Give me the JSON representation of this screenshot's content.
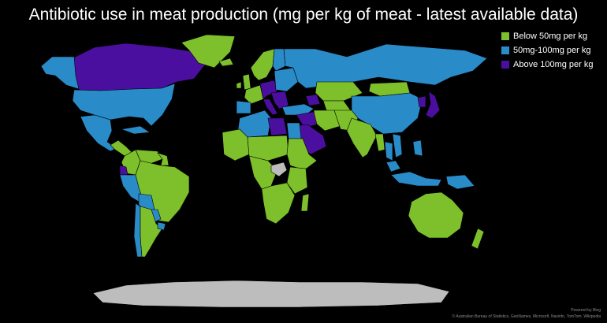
{
  "title": "Antibiotic use in meat production (mg per kg of meat - latest available data)",
  "legend": {
    "position": "top-right",
    "entries": [
      {
        "label": "Below 50mg per kg",
        "color": "#7dc02b"
      },
      {
        "label": "50mg-100mg per kg",
        "color": "#2a8bc9"
      },
      {
        "label": "Above 100mg per kg",
        "color": "#4b0fa0"
      }
    ]
  },
  "no_data_color": "#bdbdbd",
  "background_color": "#000000",
  "attribution": {
    "line1": "Powered by Bing",
    "line2": "© Australian Bureau of Statistics, GeoNames, Microsoft, Navinfo, TomTom, Wikipedia"
  },
  "regions": [
    {
      "name": "canada",
      "category": 2
    },
    {
      "name": "alaska",
      "category": 1
    },
    {
      "name": "greenland",
      "category": 0
    },
    {
      "name": "usa",
      "category": 1
    },
    {
      "name": "mexico",
      "category": 1
    },
    {
      "name": "central-america",
      "category": 0
    },
    {
      "name": "cuba",
      "category": 1
    },
    {
      "name": "colombia",
      "category": 0
    },
    {
      "name": "venezuela",
      "category": 0
    },
    {
      "name": "guianas",
      "category": 0
    },
    {
      "name": "ecuador",
      "category": 2
    },
    {
      "name": "peru",
      "category": 1
    },
    {
      "name": "brazil",
      "category": 0
    },
    {
      "name": "bolivia",
      "category": 1
    },
    {
      "name": "paraguay",
      "category": 1
    },
    {
      "name": "chile",
      "category": 1
    },
    {
      "name": "argentina",
      "category": 0
    },
    {
      "name": "uruguay",
      "category": 1
    },
    {
      "name": "iceland",
      "category": 0
    },
    {
      "name": "uk",
      "category": 0
    },
    {
      "name": "ireland",
      "category": 0
    },
    {
      "name": "scandinavia",
      "category": 0
    },
    {
      "name": "finland",
      "category": 1
    },
    {
      "name": "western-europe",
      "category": 0
    },
    {
      "name": "central-europe",
      "category": 2
    },
    {
      "name": "iberia",
      "category": 1
    },
    {
      "name": "italy",
      "category": 2
    },
    {
      "name": "balkans",
      "category": 2
    },
    {
      "name": "eastern-europe",
      "category": 1
    },
    {
      "name": "russia",
      "category": 1
    },
    {
      "name": "turkey",
      "category": 1
    },
    {
      "name": "caucasus",
      "category": 2
    },
    {
      "name": "kazakhstan",
      "category": 0
    },
    {
      "name": "central-asia",
      "category": 0
    },
    {
      "name": "mongolia",
      "category": 0
    },
    {
      "name": "china",
      "category": 1
    },
    {
      "name": "korea",
      "category": 2
    },
    {
      "name": "japan",
      "category": 2
    },
    {
      "name": "iran",
      "category": 0
    },
    {
      "name": "iraq-syria",
      "category": 2
    },
    {
      "name": "arabian-peninsula",
      "category": 2
    },
    {
      "name": "afghanistan-pakistan",
      "category": 0
    },
    {
      "name": "india",
      "category": 0
    },
    {
      "name": "myanmar",
      "category": 0
    },
    {
      "name": "thailand",
      "category": 1
    },
    {
      "name": "vietnam",
      "category": 1
    },
    {
      "name": "malaysia",
      "category": 1
    },
    {
      "name": "indonesia",
      "category": 1
    },
    {
      "name": "philippines",
      "category": 1
    },
    {
      "name": "new-guinea",
      "category": 1
    },
    {
      "name": "morocco-algeria",
      "category": 1
    },
    {
      "name": "libya",
      "category": 2
    },
    {
      "name": "egypt",
      "category": 1
    },
    {
      "name": "west-africa",
      "category": 0
    },
    {
      "name": "sahel",
      "category": 0
    },
    {
      "name": "sudan-ethiopia",
      "category": 0
    },
    {
      "name": "east-africa",
      "category": 0
    },
    {
      "name": "central-africa",
      "category": 0
    },
    {
      "name": "southern-africa",
      "category": 0
    },
    {
      "name": "madagascar",
      "category": 0
    },
    {
      "name": "australia",
      "category": 0
    },
    {
      "name": "new-zealand",
      "category": 0
    },
    {
      "name": "no-data-central-africa",
      "category": -1
    },
    {
      "name": "antarctica",
      "category": -1
    }
  ]
}
